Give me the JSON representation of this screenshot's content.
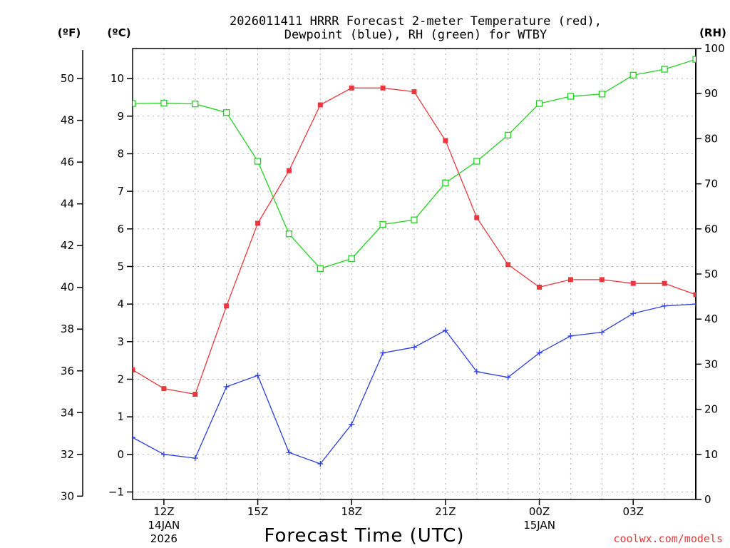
{
  "chart_data": {
    "type": "line",
    "title_line1": "2026011411 HRRR Forecast 2-meter Temperature (red),",
    "title_line2": "Dewpoint (blue), RH (green) for WTBY",
    "xlabel": "Forecast Time (UTC)",
    "credit": "coolwx.com/models",
    "unit_left_f": "(ºF)",
    "unit_left_c": "(ºC)",
    "unit_right": "(RH)",
    "x": [
      11,
      12,
      13,
      14,
      15,
      16,
      17,
      18,
      19,
      20,
      21,
      22,
      23,
      24,
      25,
      26,
      27,
      28,
      29
    ],
    "xlim": [
      11,
      29
    ],
    "ylim_c": [
      -1.2,
      10.8
    ],
    "ylim_rh": [
      0,
      100
    ],
    "x_ticks": [
      {
        "x": 12,
        "label": "12Z",
        "sub1": "14JAN",
        "sub2": "2026"
      },
      {
        "x": 15,
        "label": "15Z",
        "sub1": "",
        "sub2": ""
      },
      {
        "x": 18,
        "label": "18Z",
        "sub1": "",
        "sub2": ""
      },
      {
        "x": 21,
        "label": "21Z",
        "sub1": "",
        "sub2": ""
      },
      {
        "x": 24,
        "label": "00Z",
        "sub1": "15JAN",
        "sub2": ""
      },
      {
        "x": 27,
        "label": "03Z",
        "sub1": "",
        "sub2": ""
      }
    ],
    "y_ticks_c": [
      -1,
      0,
      1,
      2,
      3,
      4,
      5,
      6,
      7,
      8,
      9,
      10
    ],
    "y_ticks_f": [
      30,
      32,
      34,
      36,
      38,
      40,
      42,
      44,
      46,
      48,
      50
    ],
    "y_ticks_rh": [
      0,
      10,
      20,
      30,
      40,
      50,
      60,
      70,
      80,
      90,
      100
    ],
    "series": [
      {
        "name": "Temperature",
        "color": "#e8383d",
        "marker": "filled-square",
        "values": [
          2.25,
          1.75,
          1.6,
          3.95,
          6.15,
          7.55,
          9.3,
          9.75,
          9.75,
          9.65,
          8.35,
          6.3,
          5.05,
          4.45,
          4.65,
          4.65,
          4.55,
          4.55,
          4.25
        ]
      },
      {
        "name": "Dewpoint",
        "color": "#2b3fe0",
        "marker": "plus",
        "values": [
          0.45,
          0.0,
          -0.1,
          1.8,
          2.1,
          0.05,
          -0.25,
          0.8,
          2.7,
          2.85,
          3.3,
          2.2,
          2.05,
          2.7,
          3.15,
          3.25,
          3.75,
          3.95,
          4.0
        ]
      },
      {
        "name": "RH",
        "color": "#22d022",
        "marker": "open-square",
        "axis": "rh",
        "values": [
          87.8,
          87.9,
          87.7,
          85.8,
          75,
          58.9,
          51.2,
          53.4,
          61,
          62,
          70.2,
          75,
          80.8,
          87.8,
          89.4,
          89.9,
          94.1,
          95.4,
          97.6
        ]
      }
    ]
  }
}
